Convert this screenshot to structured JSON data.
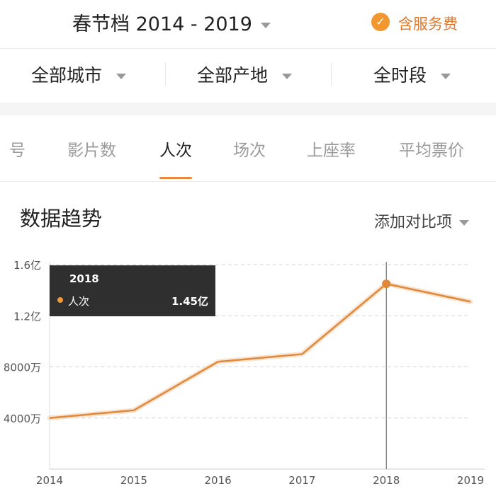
{
  "header": {
    "season_label": "春节档 2014 - 2019",
    "fee_label": "含服务费",
    "fee_checked": true
  },
  "filters": [
    {
      "label": "全部城市"
    },
    {
      "label": "全部产地"
    },
    {
      "label": "全时段"
    }
  ],
  "tabs": [
    {
      "label": "号"
    },
    {
      "label": "影片数"
    },
    {
      "label": "人次",
      "active": true
    },
    {
      "label": "场次"
    },
    {
      "label": "上座率"
    },
    {
      "label": "平均票价"
    }
  ],
  "section": {
    "title": "数据趋势",
    "compare_label": "添加对比项"
  },
  "tooltip": {
    "year": "2018",
    "series_label": "人次",
    "value_label": "1.45亿"
  },
  "colors": {
    "accent": "#e8883a",
    "line": "#e0883a",
    "tooltip_bg": "#2f2f2f"
  },
  "chart_data": {
    "type": "line",
    "x": [
      2014,
      2015,
      2016,
      2017,
      2018,
      2019
    ],
    "x_tick_labels": [
      "2014",
      "2015",
      "2016",
      "2017",
      "2018",
      "2019"
    ],
    "series": [
      {
        "name": "人次",
        "values": [
          0.4,
          0.46,
          0.84,
          0.9,
          1.45,
          1.31
        ],
        "unit": "亿"
      }
    ],
    "ylim": [
      0,
      1.6
    ],
    "y_ticks": [
      0.4,
      0.8,
      1.2,
      1.6
    ],
    "y_tick_labels": [
      "4000万",
      "8000万",
      "1.2亿",
      "1.6亿"
    ],
    "highlight_x": 2018,
    "grid": "horizontal-dashed",
    "legend": "none"
  }
}
